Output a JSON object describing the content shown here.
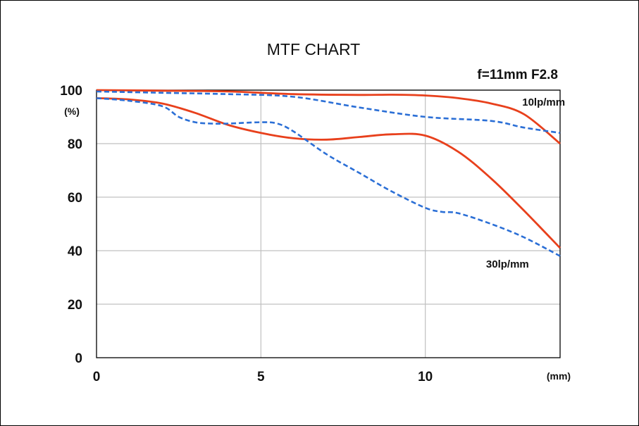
{
  "chart_data": {
    "type": "line",
    "title": "MTF CHART",
    "subtitle": "f=11mm F2.8",
    "x_unit": "(mm)",
    "y_unit": "(%)",
    "xlim": [
      0,
      14.1
    ],
    "ylim": [
      0,
      100
    ],
    "x_ticks": [
      0,
      5,
      10
    ],
    "y_ticks": [
      0,
      20,
      40,
      60,
      80,
      100
    ],
    "grid": true,
    "annotations": [
      {
        "text": "10lp/mm",
        "x": 13.6,
        "y": 95.5
      },
      {
        "text": "30lp/mm",
        "x": 12.5,
        "y": 35.0
      }
    ],
    "colors": {
      "solid": "#e8401c",
      "dashed": "#2b6fd6",
      "grid": "#c0c0c0",
      "axis": "#000000"
    },
    "series": [
      {
        "style": "solid",
        "x": [
          0,
          2,
          4,
          6,
          8,
          9,
          10,
          11,
          12,
          13,
          14.1
        ],
        "y": [
          100,
          99.8,
          99.5,
          98.5,
          98.2,
          98.3,
          98,
          97,
          95,
          91,
          80
        ]
      },
      {
        "style": "dashed",
        "x": [
          0,
          2,
          4,
          6,
          8,
          10,
          12,
          13,
          14.1
        ],
        "y": [
          99.5,
          99,
          98.5,
          97.5,
          93.5,
          90,
          88.5,
          86,
          84
        ]
      },
      {
        "style": "solid",
        "x": [
          0,
          1,
          2,
          3,
          4,
          5,
          6,
          7,
          8,
          9,
          10,
          11,
          12,
          13,
          14.1
        ],
        "y": [
          97,
          96.5,
          95,
          91.5,
          87,
          84,
          82,
          81.5,
          82.5,
          83.5,
          83,
          77,
          67,
          55,
          41
        ]
      },
      {
        "style": "dashed",
        "x": [
          0,
          1,
          2,
          2.5,
          3,
          3.5,
          4,
          5,
          5.5,
          6,
          7,
          8,
          9,
          10,
          10.5,
          11,
          12,
          13,
          14.1
        ],
        "y": [
          97,
          96,
          94,
          90,
          88,
          87.5,
          87.5,
          88,
          87.5,
          84.5,
          76,
          69,
          62,
          56,
          54.5,
          54,
          50,
          45,
          38
        ]
      }
    ]
  }
}
